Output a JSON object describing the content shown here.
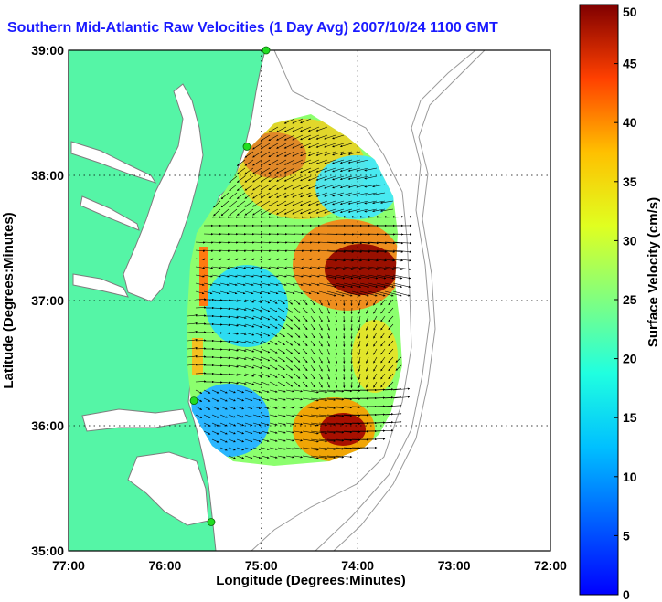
{
  "title": "Southern Mid-Atlantic Raw Velocities (1 Day Avg) 2007/10/24 1100 GMT",
  "map": {
    "x_axis_label": "Longitude (Degrees:Minutes)",
    "y_axis_label": "Latitude (Degrees:Minutes)",
    "x_ticks": [
      "77:00",
      "76:00",
      "75:00",
      "74:00",
      "73:00",
      "72:00"
    ],
    "y_ticks": [
      "39:00",
      "38:00",
      "37:00",
      "36:00",
      "35:00"
    ],
    "x_range": [
      -77,
      -72
    ],
    "y_range": [
      35,
      39
    ],
    "grid": "dotted",
    "colors": {
      "land": "#55f5a6",
      "coast_outline": "#808080",
      "station_marker": "#22dd22",
      "title": "#1a1aff"
    }
  },
  "colorbar": {
    "label": "Surface Velocity (cm/s)",
    "ticks": [
      "0",
      "5",
      "10",
      "15",
      "20",
      "25",
      "30",
      "35",
      "40",
      "45",
      "50"
    ],
    "range": [
      0,
      50
    ],
    "colormap": "jet"
  },
  "stations": [
    {
      "lon": -74.95,
      "lat": 39.0
    },
    {
      "lon": -75.15,
      "lat": 38.23
    },
    {
      "lon": -75.7,
      "lat": 36.2
    },
    {
      "lon": -75.52,
      "lat": 35.23
    }
  ]
}
